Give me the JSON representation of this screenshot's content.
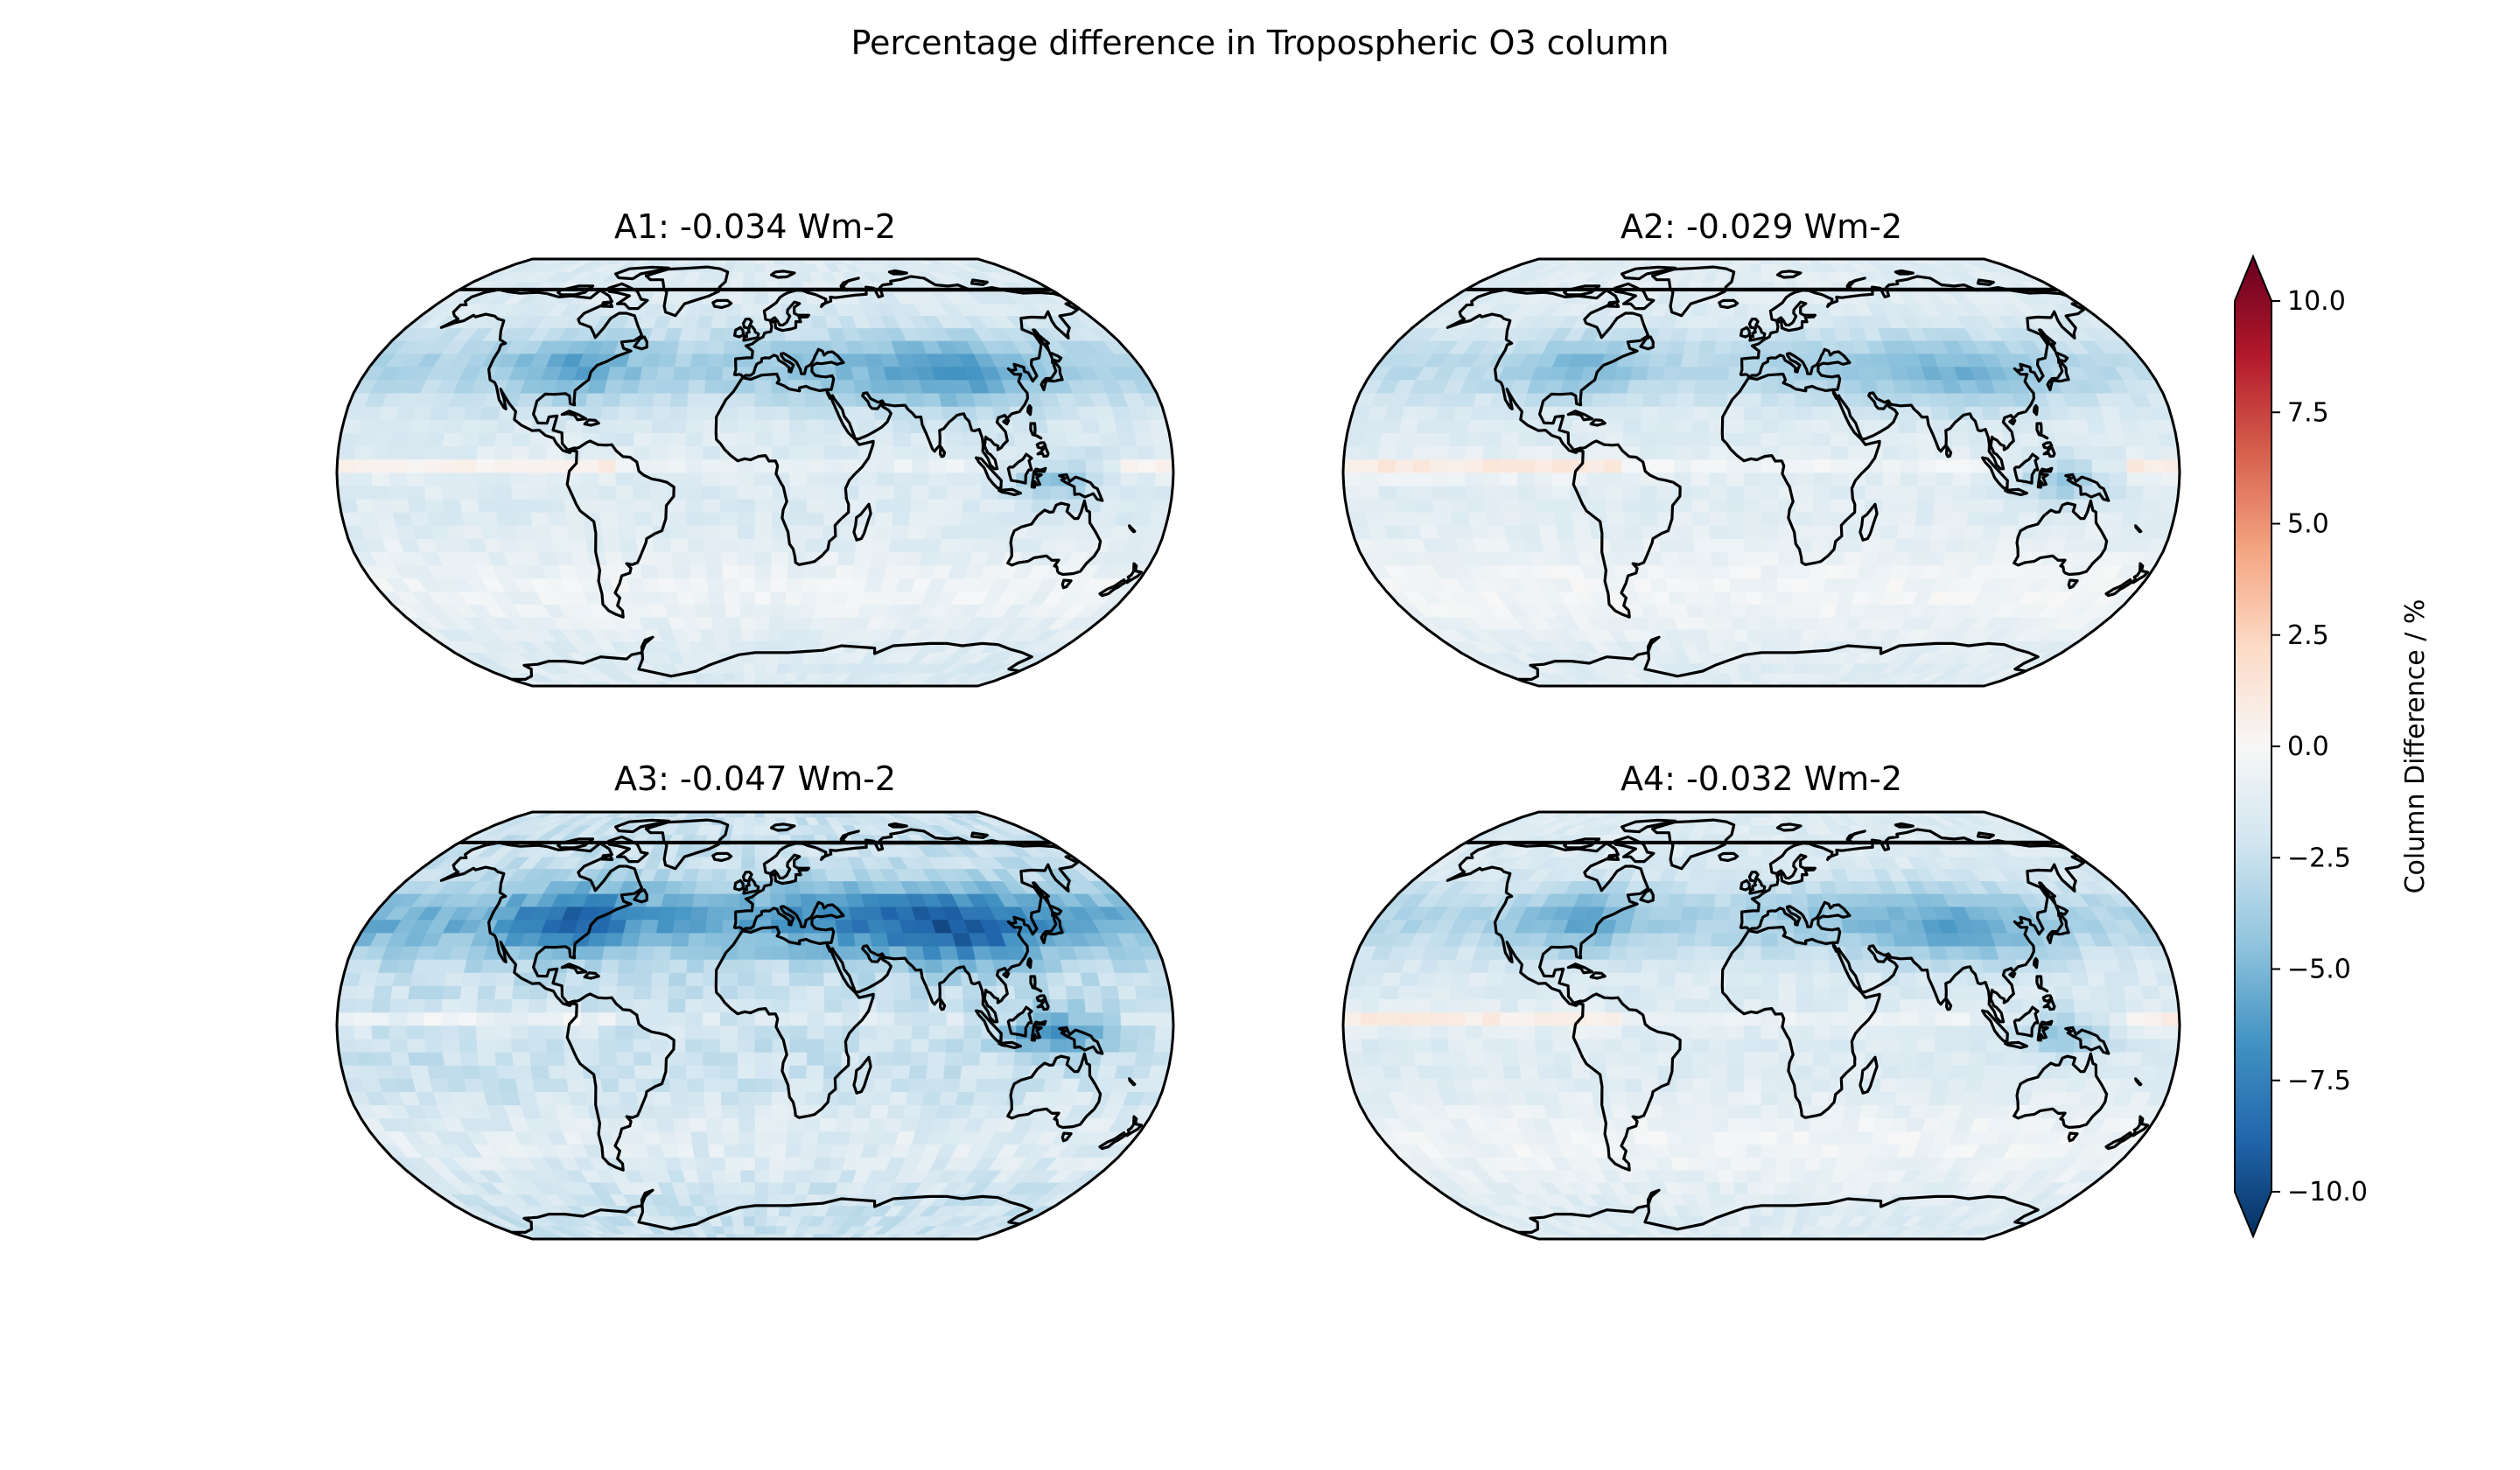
{
  "figure": {
    "title": "Percentage difference in Tropospheric O3 column"
  },
  "panels": [
    {
      "title": "A1: -0.034 Wm-2",
      "intensity": 0.9,
      "tropics": 0.3,
      "seed": 3
    },
    {
      "title": "A2: -0.029 Wm-2",
      "intensity": 0.75,
      "tropics": 0.45,
      "seed": 7
    },
    {
      "title": "A3: -0.047 Wm-2",
      "intensity": 1.35,
      "tropics": 0.55,
      "seed": 11
    },
    {
      "title": "A4: -0.032 Wm-2",
      "intensity": 0.85,
      "tropics": 0.35,
      "seed": 19
    }
  ],
  "colorbar": {
    "label": "Column Difference / %",
    "ticks": [
      "10.0",
      "7.5",
      "5.0",
      "2.5",
      "0.0",
      "−2.5",
      "−5.0",
      "−7.5",
      "−10.0"
    ],
    "range": [
      -10,
      10
    ],
    "colormap": "RdBu_r",
    "colors": [
      "#053061",
      "#2166ac",
      "#4393c3",
      "#92c5de",
      "#d1e5f0",
      "#f7f7f7",
      "#fddbc7",
      "#f4a582",
      "#d6604d",
      "#b2182b",
      "#67001f"
    ]
  },
  "projection": "Robinson",
  "colors": {
    "coastline": "#000000",
    "background": "#ffffff"
  }
}
